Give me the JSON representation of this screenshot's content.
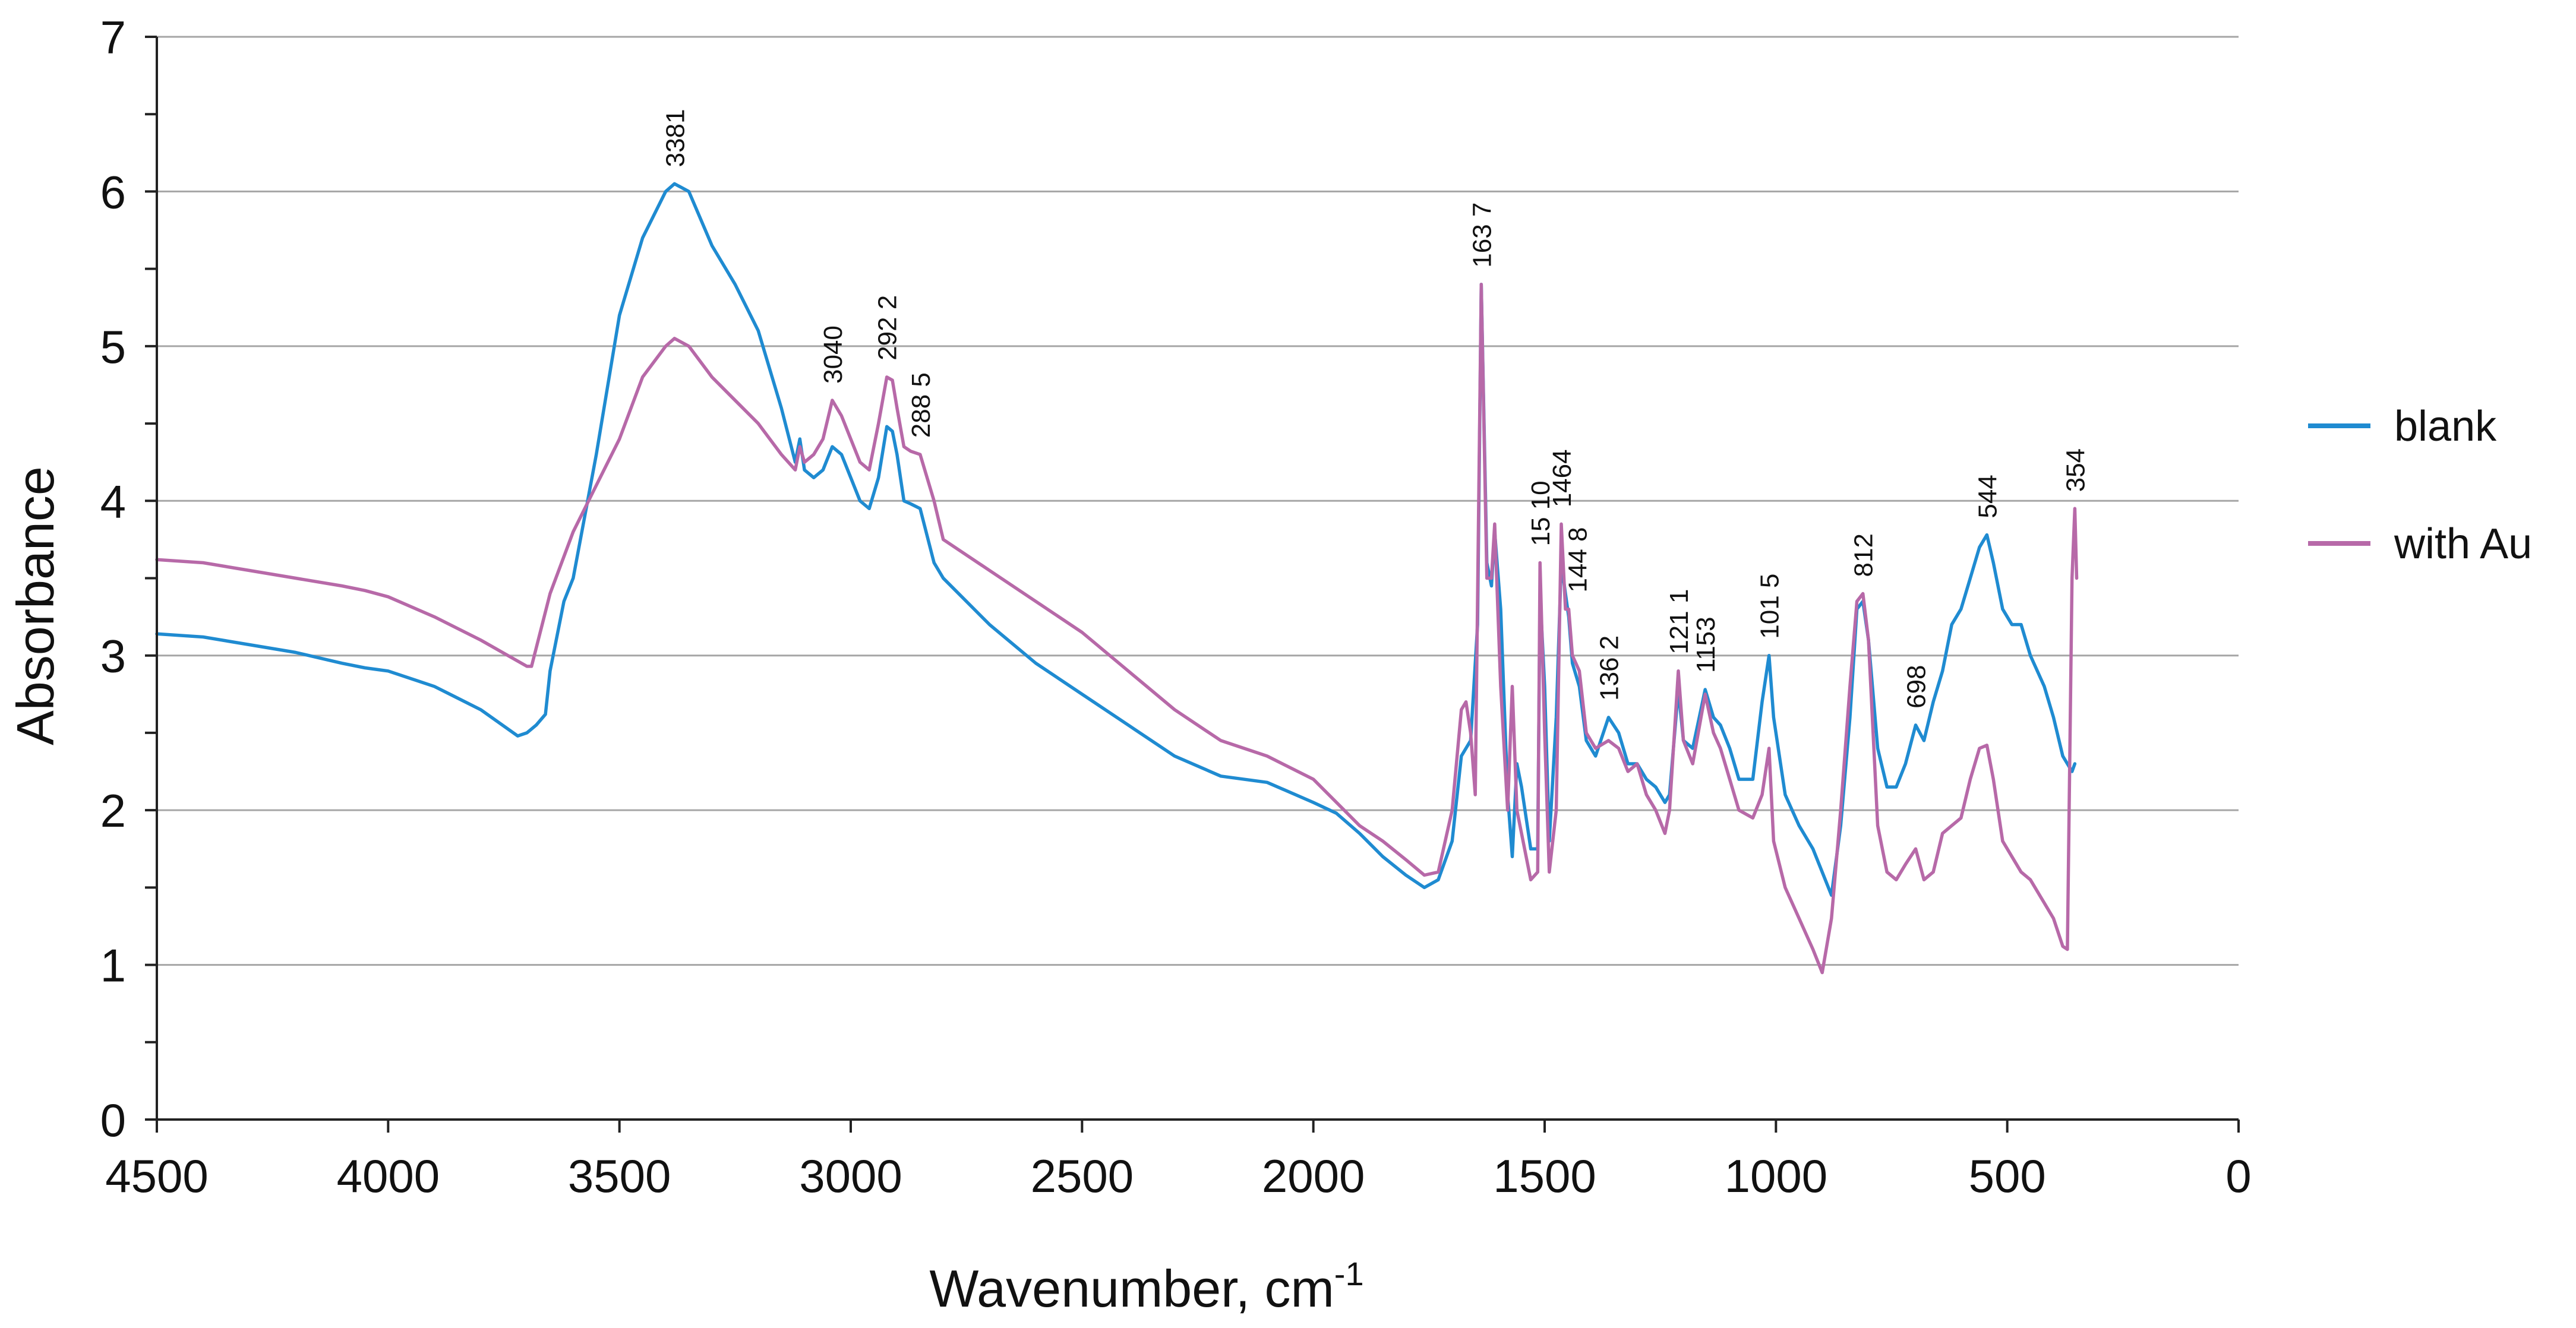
{
  "chart_data": {
    "type": "line",
    "title": "",
    "xlabel": "Wavenumber, cm",
    "xlabel_superscript": "-1",
    "ylabel": "Absorbance",
    "xlim": [
      4500,
      0
    ],
    "ylim": [
      0,
      7
    ],
    "x_ticks": [
      4500,
      4000,
      3500,
      3000,
      2500,
      2000,
      1500,
      1000,
      500,
      0
    ],
    "y_ticks": [
      0,
      1,
      2,
      3,
      4,
      5,
      6,
      7
    ],
    "grid": "horizontal major",
    "legend_position": "right",
    "colors": {
      "blank": "#1f8bd1",
      "with_au": "#b769a8"
    },
    "series": [
      {
        "name": "blank",
        "points": [
          [
            4500,
            3.14
          ],
          [
            4400,
            3.12
          ],
          [
            4300,
            3.07
          ],
          [
            4200,
            3.02
          ],
          [
            4100,
            2.95
          ],
          [
            4050,
            2.92
          ],
          [
            4000,
            2.9
          ],
          [
            3900,
            2.8
          ],
          [
            3800,
            2.65
          ],
          [
            3720,
            2.48
          ],
          [
            3700,
            2.5
          ],
          [
            3680,
            2.55
          ],
          [
            3660,
            2.62
          ],
          [
            3650,
            2.9
          ],
          [
            3620,
            3.35
          ],
          [
            3600,
            3.5
          ],
          [
            3550,
            4.3
          ],
          [
            3500,
            5.2
          ],
          [
            3450,
            5.7
          ],
          [
            3400,
            6.0
          ],
          [
            3381,
            6.05
          ],
          [
            3350,
            6.0
          ],
          [
            3300,
            5.65
          ],
          [
            3250,
            5.4
          ],
          [
            3200,
            5.1
          ],
          [
            3150,
            4.6
          ],
          [
            3120,
            4.25
          ],
          [
            3110,
            4.4
          ],
          [
            3100,
            4.2
          ],
          [
            3080,
            4.15
          ],
          [
            3060,
            4.2
          ],
          [
            3040,
            4.35
          ],
          [
            3020,
            4.3
          ],
          [
            3000,
            4.15
          ],
          [
            2980,
            4.0
          ],
          [
            2960,
            3.95
          ],
          [
            2940,
            4.15
          ],
          [
            2922,
            4.48
          ],
          [
            2910,
            4.45
          ],
          [
            2900,
            4.3
          ],
          [
            2885,
            4.0
          ],
          [
            2870,
            3.98
          ],
          [
            2850,
            3.95
          ],
          [
            2820,
            3.6
          ],
          [
            2800,
            3.5
          ],
          [
            2700,
            3.2
          ],
          [
            2600,
            2.95
          ],
          [
            2500,
            2.75
          ],
          [
            2400,
            2.55
          ],
          [
            2300,
            2.35
          ],
          [
            2200,
            2.22
          ],
          [
            2100,
            2.18
          ],
          [
            2000,
            2.05
          ],
          [
            1950,
            1.98
          ],
          [
            1900,
            1.85
          ],
          [
            1850,
            1.7
          ],
          [
            1800,
            1.58
          ],
          [
            1760,
            1.5
          ],
          [
            1730,
            1.55
          ],
          [
            1700,
            1.8
          ],
          [
            1680,
            2.35
          ],
          [
            1660,
            2.45
          ],
          [
            1645,
            3.2
          ],
          [
            1637,
            5.4
          ],
          [
            1625,
            3.6
          ],
          [
            1615,
            3.45
          ],
          [
            1608,
            3.8
          ],
          [
            1595,
            3.3
          ],
          [
            1580,
            2.1
          ],
          [
            1570,
            1.7
          ],
          [
            1560,
            2.3
          ],
          [
            1550,
            2.15
          ],
          [
            1530,
            1.75
          ],
          [
            1515,
            1.75
          ],
          [
            1510,
            3.4
          ],
          [
            1500,
            2.8
          ],
          [
            1490,
            1.8
          ],
          [
            1475,
            2.6
          ],
          [
            1464,
            3.6
          ],
          [
            1455,
            3.4
          ],
          [
            1448,
            3.25
          ],
          [
            1440,
            2.95
          ],
          [
            1425,
            2.8
          ],
          [
            1410,
            2.45
          ],
          [
            1390,
            2.35
          ],
          [
            1362,
            2.6
          ],
          [
            1340,
            2.5
          ],
          [
            1320,
            2.3
          ],
          [
            1300,
            2.3
          ],
          [
            1280,
            2.2
          ],
          [
            1260,
            2.15
          ],
          [
            1240,
            2.05
          ],
          [
            1230,
            2.1
          ],
          [
            1211,
            2.78
          ],
          [
            1200,
            2.45
          ],
          [
            1180,
            2.4
          ],
          [
            1153,
            2.78
          ],
          [
            1135,
            2.6
          ],
          [
            1120,
            2.55
          ],
          [
            1100,
            2.4
          ],
          [
            1080,
            2.2
          ],
          [
            1050,
            2.2
          ],
          [
            1030,
            2.7
          ],
          [
            1015,
            3.0
          ],
          [
            1005,
            2.6
          ],
          [
            980,
            2.1
          ],
          [
            950,
            1.9
          ],
          [
            920,
            1.75
          ],
          [
            900,
            1.6
          ],
          [
            880,
            1.45
          ],
          [
            860,
            1.9
          ],
          [
            840,
            2.6
          ],
          [
            825,
            3.3
          ],
          [
            812,
            3.35
          ],
          [
            800,
            3.1
          ],
          [
            780,
            2.4
          ],
          [
            760,
            2.15
          ],
          [
            740,
            2.15
          ],
          [
            720,
            2.3
          ],
          [
            698,
            2.55
          ],
          [
            680,
            2.45
          ],
          [
            660,
            2.7
          ],
          [
            640,
            2.9
          ],
          [
            620,
            3.2
          ],
          [
            600,
            3.3
          ],
          [
            580,
            3.5
          ],
          [
            560,
            3.7
          ],
          [
            544,
            3.78
          ],
          [
            530,
            3.6
          ],
          [
            510,
            3.3
          ],
          [
            490,
            3.2
          ],
          [
            470,
            3.2
          ],
          [
            450,
            3.0
          ],
          [
            420,
            2.8
          ],
          [
            400,
            2.6
          ],
          [
            380,
            2.35
          ],
          [
            360,
            2.25
          ],
          [
            354,
            2.3
          ]
        ]
      },
      {
        "name": "with Au",
        "points": [
          [
            4500,
            3.62
          ],
          [
            4400,
            3.6
          ],
          [
            4300,
            3.55
          ],
          [
            4200,
            3.5
          ],
          [
            4100,
            3.45
          ],
          [
            4050,
            3.42
          ],
          [
            4000,
            3.38
          ],
          [
            3900,
            3.25
          ],
          [
            3800,
            3.1
          ],
          [
            3700,
            2.93
          ],
          [
            3690,
            2.93
          ],
          [
            3650,
            3.4
          ],
          [
            3600,
            3.8
          ],
          [
            3550,
            4.1
          ],
          [
            3500,
            4.4
          ],
          [
            3450,
            4.8
          ],
          [
            3400,
            5.0
          ],
          [
            3381,
            5.05
          ],
          [
            3350,
            5.0
          ],
          [
            3300,
            4.8
          ],
          [
            3250,
            4.65
          ],
          [
            3200,
            4.5
          ],
          [
            3150,
            4.3
          ],
          [
            3120,
            4.2
          ],
          [
            3110,
            4.35
          ],
          [
            3100,
            4.25
          ],
          [
            3080,
            4.3
          ],
          [
            3060,
            4.4
          ],
          [
            3040,
            4.65
          ],
          [
            3020,
            4.55
          ],
          [
            3000,
            4.4
          ],
          [
            2980,
            4.25
          ],
          [
            2960,
            4.2
          ],
          [
            2940,
            4.5
          ],
          [
            2922,
            4.8
          ],
          [
            2910,
            4.78
          ],
          [
            2900,
            4.6
          ],
          [
            2885,
            4.35
          ],
          [
            2870,
            4.32
          ],
          [
            2850,
            4.3
          ],
          [
            2820,
            4.0
          ],
          [
            2800,
            3.75
          ],
          [
            2700,
            3.55
          ],
          [
            2600,
            3.35
          ],
          [
            2500,
            3.15
          ],
          [
            2400,
            2.9
          ],
          [
            2300,
            2.65
          ],
          [
            2200,
            2.45
          ],
          [
            2100,
            2.35
          ],
          [
            2000,
            2.2
          ],
          [
            1950,
            2.05
          ],
          [
            1900,
            1.9
          ],
          [
            1850,
            1.8
          ],
          [
            1800,
            1.68
          ],
          [
            1760,
            1.58
          ],
          [
            1730,
            1.6
          ],
          [
            1700,
            2.0
          ],
          [
            1680,
            2.65
          ],
          [
            1670,
            2.7
          ],
          [
            1660,
            2.5
          ],
          [
            1650,
            2.1
          ],
          [
            1637,
            5.4
          ],
          [
            1625,
            3.5
          ],
          [
            1615,
            3.5
          ],
          [
            1608,
            3.85
          ],
          [
            1595,
            2.8
          ],
          [
            1580,
            2.0
          ],
          [
            1570,
            2.8
          ],
          [
            1560,
            2.0
          ],
          [
            1530,
            1.55
          ],
          [
            1515,
            1.6
          ],
          [
            1510,
            3.6
          ],
          [
            1500,
            2.5
          ],
          [
            1490,
            1.6
          ],
          [
            1475,
            2.0
          ],
          [
            1464,
            3.85
          ],
          [
            1455,
            3.3
          ],
          [
            1448,
            3.3
          ],
          [
            1440,
            3.0
          ],
          [
            1425,
            2.9
          ],
          [
            1410,
            2.5
          ],
          [
            1390,
            2.4
          ],
          [
            1362,
            2.45
          ],
          [
            1340,
            2.4
          ],
          [
            1320,
            2.25
          ],
          [
            1300,
            2.3
          ],
          [
            1280,
            2.1
          ],
          [
            1260,
            2.0
          ],
          [
            1240,
            1.85
          ],
          [
            1230,
            2.0
          ],
          [
            1211,
            2.9
          ],
          [
            1200,
            2.45
          ],
          [
            1180,
            2.3
          ],
          [
            1153,
            2.75
          ],
          [
            1135,
            2.5
          ],
          [
            1120,
            2.4
          ],
          [
            1100,
            2.2
          ],
          [
            1080,
            2.0
          ],
          [
            1050,
            1.95
          ],
          [
            1030,
            2.1
          ],
          [
            1015,
            2.4
          ],
          [
            1005,
            1.8
          ],
          [
            980,
            1.5
          ],
          [
            950,
            1.3
          ],
          [
            920,
            1.1
          ],
          [
            900,
            0.95
          ],
          [
            880,
            1.3
          ],
          [
            860,
            2.0
          ],
          [
            840,
            2.8
          ],
          [
            825,
            3.35
          ],
          [
            812,
            3.4
          ],
          [
            800,
            3.1
          ],
          [
            780,
            1.9
          ],
          [
            760,
            1.6
          ],
          [
            740,
            1.55
          ],
          [
            720,
            1.65
          ],
          [
            698,
            1.75
          ],
          [
            680,
            1.55
          ],
          [
            660,
            1.6
          ],
          [
            640,
            1.85
          ],
          [
            620,
            1.9
          ],
          [
            600,
            1.95
          ],
          [
            580,
            2.2
          ],
          [
            560,
            2.4
          ],
          [
            544,
            2.42
          ],
          [
            530,
            2.2
          ],
          [
            510,
            1.8
          ],
          [
            490,
            1.7
          ],
          [
            470,
            1.6
          ],
          [
            450,
            1.55
          ],
          [
            420,
            1.4
          ],
          [
            400,
            1.3
          ],
          [
            380,
            1.12
          ],
          [
            370,
            1.1
          ],
          [
            360,
            3.5
          ],
          [
            354,
            3.95
          ],
          [
            350,
            3.5
          ]
        ]
      }
    ],
    "peak_labels": [
      {
        "text": "3381",
        "x": 3381,
        "y": 6.05
      },
      {
        "text": "3040",
        "x": 3040,
        "y": 4.65
      },
      {
        "text": "292 2",
        "x": 2922,
        "y": 4.8
      },
      {
        "text": "288 5",
        "x": 2850,
        "y": 4.3
      },
      {
        "text": "163 7",
        "x": 1637,
        "y": 5.4
      },
      {
        "text": "15 10",
        "x": 1510,
        "y": 3.6
      },
      {
        "text": "1464",
        "x": 1464,
        "y": 3.85
      },
      {
        "text": "144 8",
        "x": 1430,
        "y": 3.3
      },
      {
        "text": "136 2",
        "x": 1362,
        "y": 2.6
      },
      {
        "text": "121 1",
        "x": 1211,
        "y": 2.9
      },
      {
        "text": "1153",
        "x": 1153,
        "y": 2.78
      },
      {
        "text": "101 5",
        "x": 1015,
        "y": 3.0
      },
      {
        "text": "812",
        "x": 812,
        "y": 3.4
      },
      {
        "text": "698",
        "x": 698,
        "y": 2.55
      },
      {
        "text": "544",
        "x": 544,
        "y": 3.78
      },
      {
        "text": "354",
        "x": 354,
        "y": 3.95
      }
    ]
  }
}
